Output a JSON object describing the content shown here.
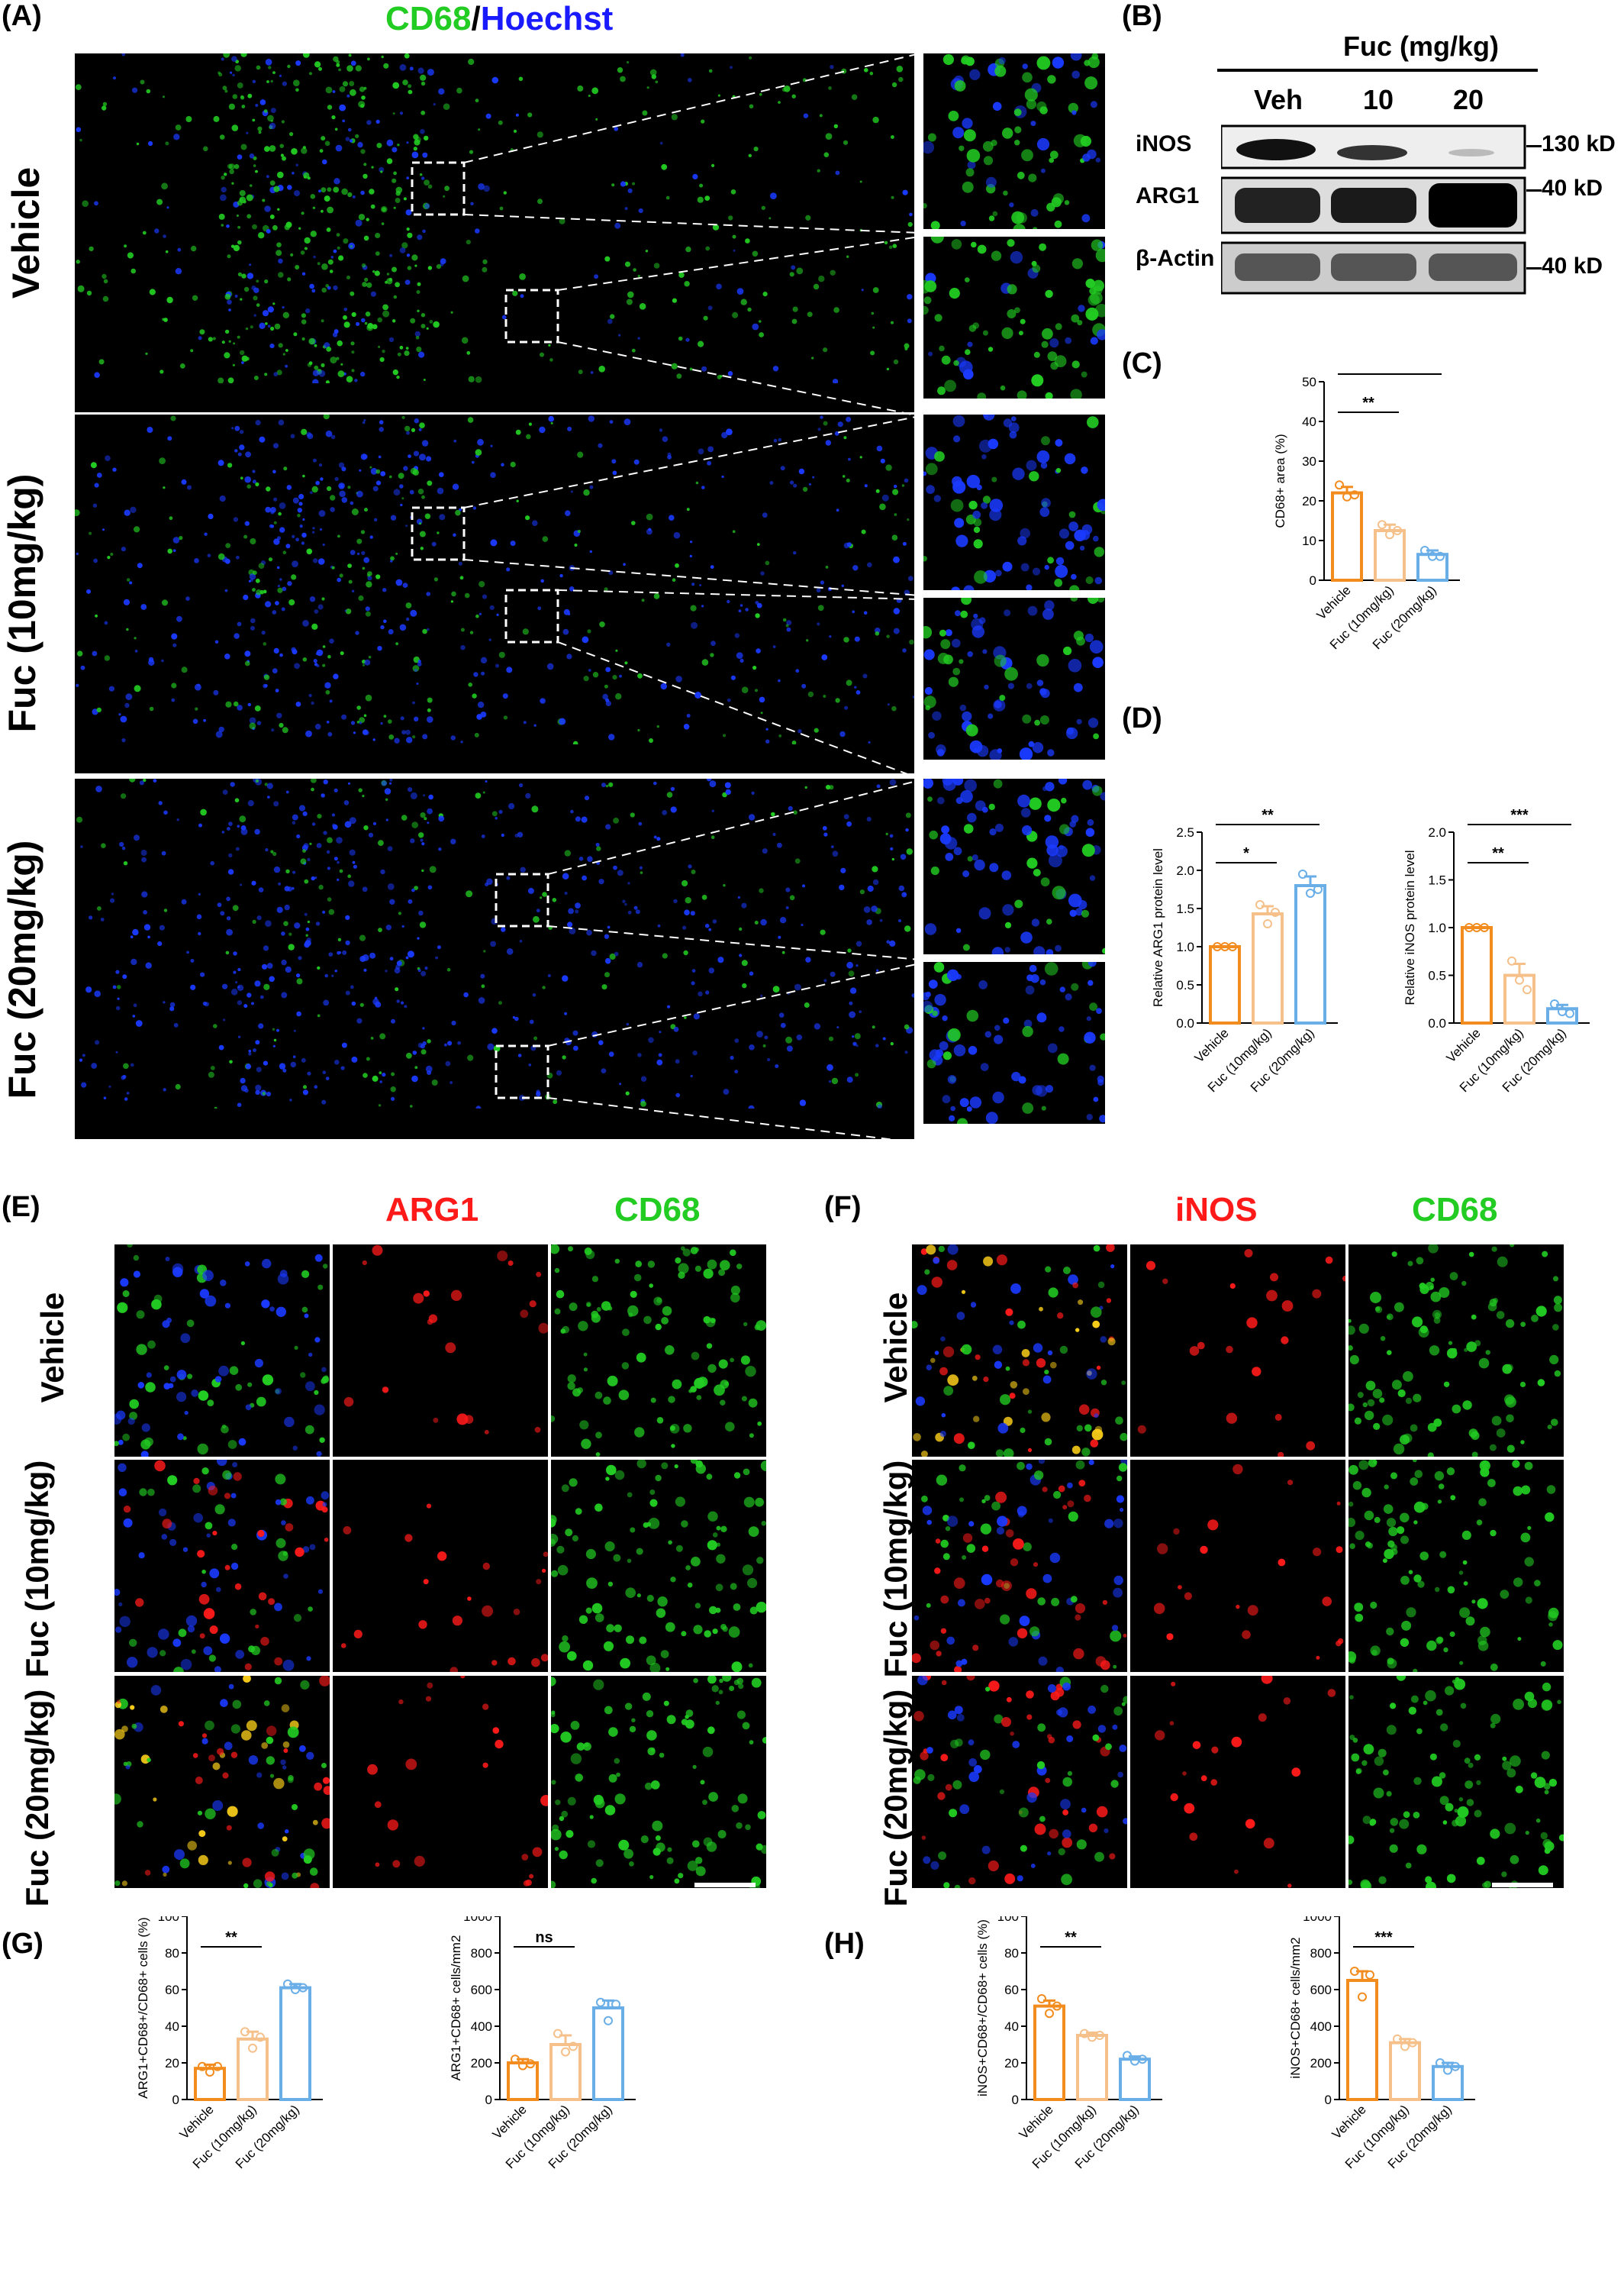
{
  "panels": {
    "A": {
      "label": "(A)",
      "title_cd68": "CD68",
      "title_slash": "/",
      "title_hoechst": "Hoechst",
      "rows": [
        "Vehicle",
        "Fuc (10mg/kg)",
        "Fuc (20mg/kg)"
      ]
    },
    "B": {
      "label": "(B)",
      "header": "Fuc (mg/kg)",
      "lanes": [
        "Veh",
        "10",
        "20"
      ],
      "bands": [
        "iNOS",
        "ARG1",
        "β-Actin"
      ],
      "sizes": [
        "130 kD",
        "40 kD",
        "40 kD"
      ]
    },
    "C": {
      "label": "(C)"
    },
    "D": {
      "label": "(D)"
    },
    "E": {
      "label": "(E)",
      "ch1": "ARG1",
      "ch2": "CD68",
      "rows": [
        "Vehicle",
        "Fuc (10mg/kg)",
        "Fuc (20mg/kg)"
      ]
    },
    "F": {
      "label": "(F)",
      "ch1": "iNOS",
      "ch2": "CD68",
      "rows": [
        "Vehicle",
        "Fuc (10mg/kg)",
        "Fuc (20mg/kg)"
      ]
    },
    "G": {
      "label": "(G)"
    },
    "H": {
      "label": "(H)"
    }
  },
  "colors": {
    "green": "#22cc22",
    "blue": "#1a1aff",
    "red": "#ff1a1a",
    "vehicle": "#f28c1e",
    "fuc10": "#f5c08a",
    "fuc20": "#6aaee8"
  },
  "chart_data": [
    {
      "id": "C",
      "type": "bar",
      "categories": [
        "Vehicle",
        "Fuc (10mg/kg)",
        "Fuc (20mg/kg)"
      ],
      "values": [
        22,
        12.5,
        6.5
      ],
      "errors": [
        1.5,
        1.5,
        1
      ],
      "points": [
        [
          24,
          21,
          21.5
        ],
        [
          14,
          11.5,
          12.5
        ],
        [
          7.5,
          6,
          6
        ]
      ],
      "ylabel": "CD68+ area (%)",
      "ylim": [
        0,
        50
      ],
      "ticks": [
        0,
        10,
        20,
        30,
        40,
        50
      ],
      "sig": [
        {
          "from": 0,
          "to": 1,
          "text": "**"
        },
        {
          "from": 0,
          "to": 2,
          "text": "***"
        }
      ]
    },
    {
      "id": "D1",
      "type": "bar",
      "categories": [
        "Vehicle",
        "Fuc (10mg/kg)",
        "Fuc (20mg/kg)"
      ],
      "values": [
        1.0,
        1.43,
        1.8
      ],
      "errors": [
        0,
        0.1,
        0.12
      ],
      "points": [
        [
          1,
          1,
          1
        ],
        [
          1.55,
          1.3,
          1.45
        ],
        [
          1.95,
          1.7,
          1.75
        ]
      ],
      "ylabel": "Relative ARG1 protein level",
      "ylim": [
        0,
        2.5
      ],
      "ticks": [
        0.0,
        0.5,
        1.0,
        1.5,
        2.0,
        2.5
      ],
      "sig": [
        {
          "from": 0,
          "to": 1,
          "text": "*"
        },
        {
          "from": 0,
          "to": 2,
          "text": "**"
        }
      ]
    },
    {
      "id": "D2",
      "type": "bar",
      "categories": [
        "Vehicle",
        "Fuc (10mg/kg)",
        "Fuc (20mg/kg)"
      ],
      "values": [
        1.0,
        0.5,
        0.15
      ],
      "errors": [
        0,
        0.12,
        0.04
      ],
      "points": [
        [
          1,
          1,
          1
        ],
        [
          0.65,
          0.45,
          0.35
        ],
        [
          0.2,
          0.12,
          0.1
        ]
      ],
      "ylabel": "Relative iNOS protein level",
      "ylim": [
        0,
        2.0
      ],
      "ticks": [
        0.0,
        0.5,
        1.0,
        1.5,
        2.0
      ],
      "sig": [
        {
          "from": 0,
          "to": 1,
          "text": "**"
        },
        {
          "from": 0,
          "to": 2,
          "text": "***"
        }
      ]
    },
    {
      "id": "G1",
      "type": "bar",
      "categories": [
        "Vehicle",
        "Fuc (10mg/kg)",
        "Fuc (20mg/kg)"
      ],
      "values": [
        17,
        33,
        61
      ],
      "errors": [
        2,
        4,
        2
      ],
      "points": [
        [
          18,
          15,
          18
        ],
        [
          37,
          28,
          34
        ],
        [
          63,
          60,
          61
        ]
      ],
      "ylabel": "ARG1+CD68+/CD68+ cells (%)",
      "ylim": [
        0,
        100
      ],
      "ticks": [
        0,
        20,
        40,
        60,
        80,
        100
      ],
      "sig": [
        {
          "from": 0,
          "to": 1,
          "text": "**"
        },
        {
          "from": 0,
          "to": 2,
          "text": "****"
        }
      ]
    },
    {
      "id": "G2",
      "type": "bar",
      "categories": [
        "Vehicle",
        "Fuc (10mg/kg)",
        "Fuc (20mg/kg)"
      ],
      "values": [
        200,
        300,
        500
      ],
      "errors": [
        20,
        50,
        40
      ],
      "points": [
        [
          220,
          185,
          195
        ],
        [
          360,
          260,
          290
        ],
        [
          530,
          430,
          520
        ]
      ],
      "ylabel": "ARG1+CD68+ cells/mm2",
      "ylim": [
        0,
        1000
      ],
      "ticks": [
        0,
        200,
        400,
        600,
        800,
        1000
      ],
      "sig": [
        {
          "from": 0,
          "to": 1,
          "text": "ns"
        },
        {
          "from": 0,
          "to": 2,
          "text": "**"
        }
      ]
    },
    {
      "id": "H1",
      "type": "bar",
      "categories": [
        "Vehicle",
        "Fuc (10mg/kg)",
        "Fuc (20mg/kg)"
      ],
      "values": [
        51,
        35,
        22
      ],
      "errors": [
        3,
        1.5,
        1.5
      ],
      "points": [
        [
          55,
          47,
          51
        ],
        [
          36,
          34,
          35
        ],
        [
          24,
          21,
          22
        ]
      ],
      "ylabel": "iNOS+CD68+/CD68+ cells (%)",
      "ylim": [
        0,
        100
      ],
      "ticks": [
        0,
        20,
        40,
        60,
        80,
        100
      ],
      "sig": [
        {
          "from": 0,
          "to": 1,
          "text": "**"
        },
        {
          "from": 0,
          "to": 2,
          "text": "***"
        }
      ]
    },
    {
      "id": "H2",
      "type": "bar",
      "categories": [
        "Vehicle",
        "Fuc (10mg/kg)",
        "Fuc (20mg/kg)"
      ],
      "values": [
        650,
        310,
        180
      ],
      "errors": [
        50,
        20,
        20
      ],
      "points": [
        [
          700,
          560,
          680
        ],
        [
          330,
          290,
          310
        ],
        [
          200,
          160,
          180
        ]
      ],
      "ylabel": "iNOS+CD68+ cells/mm2",
      "ylim": [
        0,
        1000
      ],
      "ticks": [
        0,
        200,
        400,
        600,
        800,
        1000
      ],
      "sig": [
        {
          "from": 0,
          "to": 1,
          "text": "***"
        },
        {
          "from": 0,
          "to": 2,
          "text": "***"
        }
      ]
    }
  ]
}
